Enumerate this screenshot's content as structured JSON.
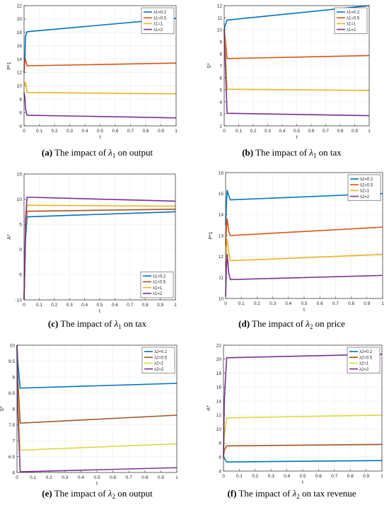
{
  "colors": {
    "c1": "#0072BD",
    "c2": "#D95319",
    "c2b": "#A2531B",
    "c3": "#EDB120",
    "c3b": "#D8D83A",
    "c4": "#7E2F8E",
    "frame": "#262626",
    "grid": "#f0f0f0"
  },
  "panels": [
    {
      "id": "a",
      "caption": {
        "label": "(a)",
        "prefix": "The impact of",
        "symbol": "λ",
        "sub": "1",
        "suffix": "on output"
      },
      "chart_data": {
        "type": "line",
        "xlabel": "t",
        "ylabel": "P*1",
        "xlim": [
          0,
          1
        ],
        "ylim": [
          4,
          22
        ],
        "xticks": [
          "0",
          "0.1",
          "0.2",
          "0.3",
          "0.4",
          "0.5",
          "0.6",
          "0.7",
          "0.8",
          "0.9",
          "1"
        ],
        "yticks": [
          "4",
          "6",
          "8",
          "10",
          "12",
          "14",
          "16",
          "18",
          "20",
          "22"
        ],
        "legend": "top-right",
        "series": [
          {
            "name": "λ1=0.2",
            "color": "c1",
            "x": [
              0,
              0.005,
              0.01,
              0.02,
              1
            ],
            "y": [
              12,
              14,
              17.5,
              18.1,
              20.1
            ]
          },
          {
            "name": "λ1=0.5",
            "color": "c2",
            "x": [
              0,
              0.005,
              0.01,
              0.02,
              1
            ],
            "y": [
              12,
              13.7,
              13.9,
              13,
              13.4
            ]
          },
          {
            "name": "λ1=1",
            "color": "c3",
            "x": [
              0,
              0.005,
              0.01,
              0.02,
              1
            ],
            "y": [
              10,
              10.3,
              10.5,
              9,
              8.8
            ]
          },
          {
            "name": "λ1=2",
            "color": "c4",
            "x": [
              0,
              0.005,
              0.01,
              0.02,
              1
            ],
            "y": [
              9,
              8.3,
              6.5,
              5.6,
              5.2
            ]
          }
        ]
      }
    },
    {
      "id": "b",
      "caption": {
        "label": "(b)",
        "prefix": "The impact of",
        "symbol": "λ",
        "sub": "1",
        "suffix": "on tax"
      },
      "chart_data": {
        "type": "line",
        "xlabel": "t",
        "ylabel": "S*",
        "xlim": [
          0,
          1
        ],
        "ylim": [
          2,
          12
        ],
        "xticks": [
          "0",
          "0.1",
          "0.2",
          "0.3",
          "0.4",
          "0.5",
          "0.6",
          "0.7",
          "0.8",
          "0.9",
          "1"
        ],
        "yticks": [
          "2",
          "3",
          "4",
          "5",
          "6",
          "7",
          "8",
          "9",
          "10",
          "11",
          "12"
        ],
        "legend": "top-right",
        "series": [
          {
            "name": "λ1=0.2",
            "color": "c1",
            "x": [
              0,
              0.005,
              0.02,
              1
            ],
            "y": [
              10,
              10.3,
              10.8,
              12
            ]
          },
          {
            "name": "λ1=0.5",
            "color": "c2",
            "x": [
              0,
              0.005,
              0.02,
              1
            ],
            "y": [
              10,
              9.5,
              7.6,
              7.85
            ]
          },
          {
            "name": "λ1=1",
            "color": "c3",
            "x": [
              0,
              0.005,
              0.02,
              1
            ],
            "y": [
              10,
              9,
              5.05,
              4.95
            ]
          },
          {
            "name": "λ1=2",
            "color": "c4",
            "x": [
              0,
              0.005,
              0.02,
              1
            ],
            "y": [
              10,
              8,
              3.05,
              2.85
            ]
          }
        ]
      }
    },
    {
      "id": "c",
      "caption": {
        "label": "(c)",
        "prefix": "The impact of",
        "symbol": "λ",
        "sub": "1",
        "suffix": "on tax"
      },
      "chart_data": {
        "type": "line",
        "xlabel": "t",
        "ylabel": "A*",
        "xlim": [
          0,
          1
        ],
        "ylim": [
          -10,
          15
        ],
        "xticks": [
          "0",
          "0.1",
          "0.2",
          "0.3",
          "0.4",
          "0.5",
          "0.6",
          "0.7",
          "0.8",
          "0.9",
          "1"
        ],
        "yticks": [
          "-10",
          "-5",
          "0",
          "5",
          "10",
          "15"
        ],
        "legend": "bottom-right",
        "series": [
          {
            "name": "λ1=0.2",
            "color": "c1",
            "x": [
              0,
              0.01,
              0.02,
              1
            ],
            "y": [
              -10,
              2,
              6.5,
              7.5
            ]
          },
          {
            "name": "λ1=0.5",
            "color": "c2b",
            "x": [
              0,
              0.01,
              0.02,
              1
            ],
            "y": [
              -10,
              4,
              7.6,
              8
            ]
          },
          {
            "name": "λ1=1",
            "color": "c3",
            "x": [
              0,
              0.01,
              0.02,
              1
            ],
            "y": [
              -10,
              5,
              8.8,
              8.6
            ]
          },
          {
            "name": "λ1=2",
            "color": "c4",
            "x": [
              0,
              0.01,
              0.02,
              1
            ],
            "y": [
              -10,
              6,
              10.4,
              9.6
            ]
          }
        ]
      }
    },
    {
      "id": "d",
      "caption": {
        "label": "(d)",
        "prefix": "The impact of",
        "symbol": "λ",
        "sub": "2",
        "suffix": "on price"
      },
      "chart_data": {
        "type": "line",
        "xlabel": "t",
        "ylabel": "P*1",
        "xlim": [
          0,
          1
        ],
        "ylim": [
          10,
          16
        ],
        "xticks": [
          "0",
          "0.1",
          "0.2",
          "0.3",
          "0.4",
          "0.5",
          "0.6",
          "0.7",
          "0.8",
          "0.9",
          "1"
        ],
        "yticks": [
          "10",
          "11",
          "12",
          "13",
          "14",
          "15",
          "16"
        ],
        "legend": "top-right",
        "series": [
          {
            "name": "λ2=0.2",
            "color": "c1",
            "x": [
              0,
              0.005,
              0.01,
              0.02,
              0.03,
              1
            ],
            "y": [
              13.5,
              14.5,
              15.15,
              14.9,
              14.7,
              15
            ]
          },
          {
            "name": "λ2=0.5",
            "color": "c2",
            "x": [
              0,
              0.005,
              0.01,
              0.02,
              0.03,
              1
            ],
            "y": [
              12.5,
              13.3,
              13.8,
              13.2,
              13,
              13.4
            ]
          },
          {
            "name": "λ2=1",
            "color": "c3",
            "x": [
              0,
              0.005,
              0.01,
              0.02,
              0.03,
              1
            ],
            "y": [
              11.5,
              12.5,
              12.8,
              12.2,
              11.8,
              12.1
            ]
          },
          {
            "name": "λ2=2",
            "color": "c4",
            "x": [
              0,
              0.005,
              0.01,
              0.02,
              0.03,
              1
            ],
            "y": [
              10.1,
              11.5,
              12.1,
              11.2,
              10.9,
              11.1
            ]
          }
        ]
      }
    },
    {
      "id": "e",
      "caption": {
        "label": "(e)",
        "prefix": "The impact of",
        "symbol": "λ",
        "sub": "2",
        "suffix": "on output"
      },
      "chart_data": {
        "type": "line",
        "xlabel": "t",
        "ylabel": "S*",
        "xlim": [
          0,
          1
        ],
        "ylim": [
          6,
          10
        ],
        "xticks": [
          "0",
          "0.1",
          "0.2",
          "0.3",
          "0.4",
          "0.5",
          "0.6",
          "0.7",
          "0.8",
          "0.9",
          "1"
        ],
        "yticks": [
          "6",
          "6.5",
          "7",
          "7.5",
          "8",
          "8.5",
          "9",
          "9.5",
          "10"
        ],
        "legend": "top-right",
        "series": [
          {
            "name": "λ2=0.2",
            "color": "c1",
            "x": [
              0,
              0.005,
              0.02,
              1
            ],
            "y": [
              10,
              9.5,
              8.65,
              8.8
            ]
          },
          {
            "name": "λ2=0.5",
            "color": "c2b",
            "x": [
              0,
              0.005,
              0.02,
              1
            ],
            "y": [
              10,
              9,
              7.55,
              7.8
            ]
          },
          {
            "name": "λ2=1",
            "color": "c3b",
            "x": [
              0,
              0.005,
              0.02,
              1
            ],
            "y": [
              10,
              8.5,
              6.7,
              6.9
            ]
          },
          {
            "name": "λ2=2",
            "color": "c4",
            "x": [
              0,
              0.005,
              0.02,
              1
            ],
            "y": [
              10,
              8,
              6.02,
              6.15
            ]
          }
        ]
      }
    },
    {
      "id": "f",
      "caption": {
        "label": "(f)",
        "prefix": "The impact of",
        "symbol": "λ",
        "sub": "2",
        "suffix": "on tax revenue"
      },
      "chart_data": {
        "type": "line",
        "xlabel": "t",
        "ylabel": "A*",
        "xlim": [
          0,
          1
        ],
        "ylim": [
          4,
          22
        ],
        "xticks": [
          "0",
          "0.1",
          "0.2",
          "0.3",
          "0.4",
          "0.5",
          "0.6",
          "0.7",
          "0.8",
          "0.9",
          "1"
        ],
        "yticks": [
          "4",
          "6",
          "8",
          "10",
          "12",
          "14",
          "16",
          "18",
          "20",
          "22"
        ],
        "legend": "top-right",
        "series": [
          {
            "name": "λ2=0.2",
            "color": "c1",
            "x": [
              0,
              0.005,
              0.02,
              1
            ],
            "y": [
              6,
              5.8,
              5.3,
              5.5
            ]
          },
          {
            "name": "λ2=0.5",
            "color": "c2b",
            "x": [
              0,
              0.005,
              0.02,
              1
            ],
            "y": [
              6,
              7,
              7.6,
              7.8
            ]
          },
          {
            "name": "λ2=1",
            "color": "c3b",
            "x": [
              0,
              0.005,
              0.02,
              1
            ],
            "y": [
              6,
              9,
              11.6,
              12
            ]
          },
          {
            "name": "λ2=2",
            "color": "c4",
            "x": [
              0,
              0.005,
              0.02,
              1
            ],
            "y": [
              6,
              14,
              20.2,
              20.7
            ]
          }
        ]
      }
    }
  ]
}
